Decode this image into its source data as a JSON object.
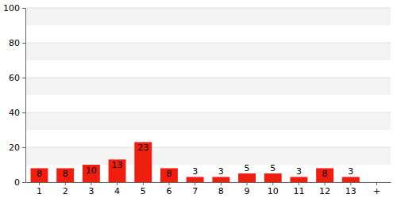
{
  "chart_data": {
    "type": "bar",
    "categories": [
      "1",
      "2",
      "3",
      "4",
      "5",
      "6",
      "7",
      "8",
      "9",
      "10",
      "11",
      "12",
      "13",
      "+"
    ],
    "values": [
      8,
      8,
      10,
      13,
      23,
      8,
      3,
      3,
      5,
      5,
      3,
      8,
      3,
      null
    ],
    "color": "#f01e0f",
    "ylim": [
      0,
      100
    ],
    "yticks": [
      0,
      20,
      40,
      60,
      80,
      100
    ],
    "grid": true,
    "data_labels": true
  }
}
